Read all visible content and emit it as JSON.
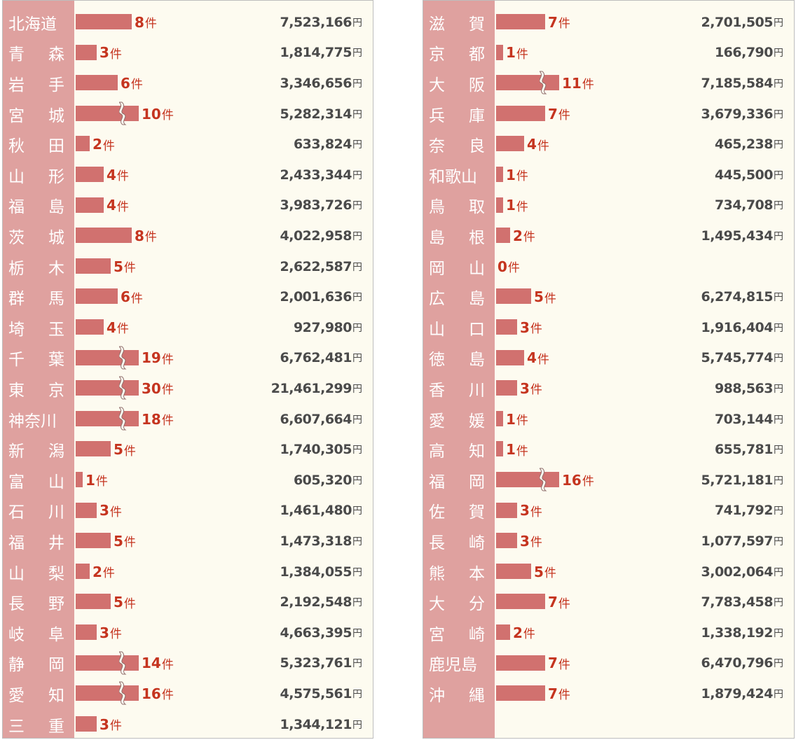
{
  "colors": {
    "name_band": "#dfa19f",
    "bar": "#d1716f",
    "count_text": "#c5341f",
    "amount_text": "#4a4a4a",
    "background": "#fdfbf0"
  },
  "count_unit": "件",
  "amount_unit": "円",
  "chart_data": [
    {
      "type": "bar",
      "orientation": "horizontal",
      "categories": [
        "北海道",
        "青森",
        "岩手",
        "宮城",
        "秋田",
        "山形",
        "福島",
        "茨城",
        "栃木",
        "群馬",
        "埼玉",
        "千葉",
        "東京",
        "神奈川",
        "新潟",
        "富山",
        "石川",
        "福井",
        "山梨",
        "長野",
        "岐阜",
        "静岡",
        "愛知",
        "三重"
      ],
      "series": [
        {
          "values": [
            8,
            3,
            6,
            10,
            2,
            4,
            4,
            8,
            5,
            6,
            4,
            19,
            30,
            18,
            5,
            1,
            3,
            5,
            2,
            5,
            3,
            14,
            16,
            3
          ]
        }
      ],
      "amounts": [
        "7,523,166",
        "1,814,775",
        "3,346,656",
        "5,282,314",
        "633,824",
        "2,433,344",
        "3,983,726",
        "4,022,958",
        "2,622,587",
        "2,001,636",
        "927,980",
        "6,762,481",
        "21,461,299",
        "6,607,664",
        "1,740,305",
        "605,320",
        "1,461,480",
        "1,473,318",
        "1,384,055",
        "2,192,548",
        "4,663,395",
        "5,323,761",
        "4,575,561",
        "1,344,121"
      ],
      "axis_break": [
        false,
        false,
        false,
        true,
        false,
        false,
        false,
        false,
        false,
        false,
        false,
        true,
        true,
        true,
        false,
        false,
        false,
        false,
        false,
        false,
        false,
        true,
        true,
        false
      ],
      "grid": false,
      "legend": "none"
    },
    {
      "type": "bar",
      "orientation": "horizontal",
      "categories": [
        "滋賀",
        "京都",
        "大阪",
        "兵庫",
        "奈良",
        "和歌山",
        "鳥取",
        "島根",
        "岡山",
        "広島",
        "山口",
        "徳島",
        "香川",
        "愛媛",
        "高知",
        "福岡",
        "佐賀",
        "長崎",
        "熊本",
        "大分",
        "宮崎",
        "鹿児島",
        "沖縄"
      ],
      "series": [
        {
          "values": [
            7,
            1,
            11,
            7,
            4,
            1,
            1,
            2,
            0,
            5,
            3,
            4,
            3,
            1,
            1,
            16,
            3,
            3,
            5,
            7,
            2,
            7,
            7
          ]
        }
      ],
      "amounts": [
        "2,701,505",
        "166,790",
        "7,185,584",
        "3,679,336",
        "465,238",
        "445,500",
        "734,708",
        "1,495,434",
        "",
        "6,274,815",
        "1,916,404",
        "5,745,774",
        "988,563",
        "703,144",
        "655,781",
        "5,721,181",
        "741,792",
        "1,077,597",
        "3,002,064",
        "7,783,458",
        "1,338,192",
        "6,470,796",
        "1,879,424"
      ],
      "axis_break": [
        false,
        false,
        true,
        false,
        false,
        false,
        false,
        false,
        false,
        false,
        false,
        false,
        false,
        false,
        false,
        true,
        false,
        false,
        false,
        false,
        false,
        false,
        false
      ],
      "grid": false,
      "legend": "none"
    }
  ]
}
